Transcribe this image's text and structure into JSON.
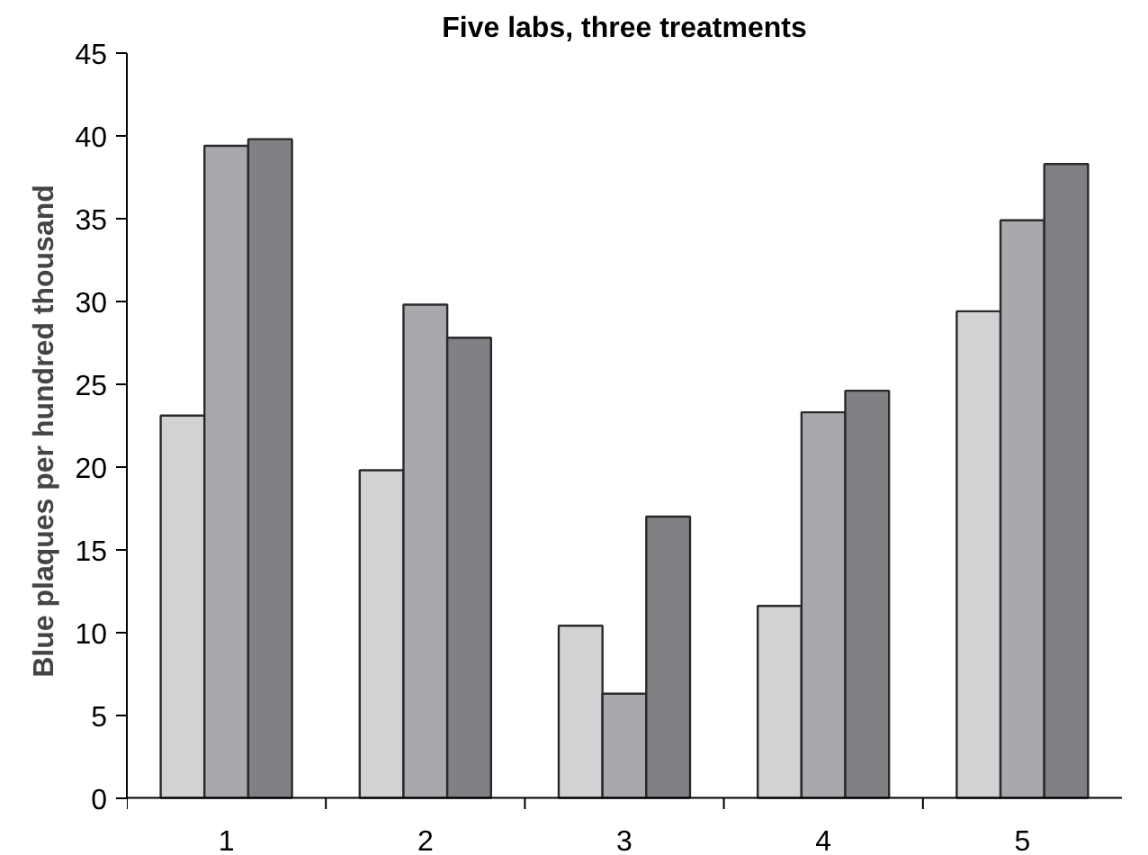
{
  "chart_data": {
    "type": "bar",
    "title": "Five labs, three treatments",
    "ylabel": "Blue plaques per hundred thousand",
    "categories": [
      "1",
      "2",
      "3",
      "4",
      "5"
    ],
    "series": [
      {
        "color": "#d1d2d4",
        "values": [
          23.1,
          19.8,
          10.4,
          11.6,
          29.4
        ]
      },
      {
        "color": "#a8a9ad",
        "values": [
          39.4,
          29.8,
          6.3,
          23.3,
          34.9
        ]
      },
      {
        "color": "#808185",
        "values": [
          39.8,
          27.8,
          17.0,
          24.6,
          38.3
        ]
      }
    ],
    "ylim": [
      0,
      45
    ],
    "yticks": [
      0,
      5,
      10,
      15,
      20,
      25,
      30,
      35,
      40,
      45
    ],
    "grid": false
  }
}
